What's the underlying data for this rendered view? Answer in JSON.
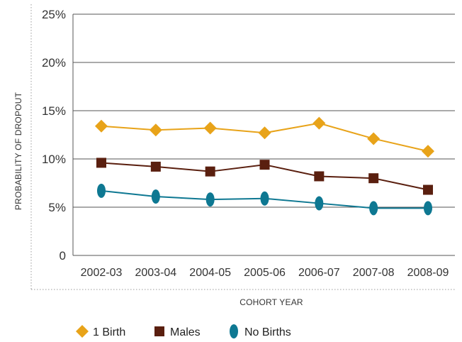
{
  "chart_data": {
    "type": "line",
    "categories": [
      "2002-03",
      "2003-04",
      "2004-05",
      "2005-06",
      "2006-07",
      "2007-08",
      "2008-09"
    ],
    "series": [
      {
        "name": "1 Birth",
        "values": [
          13.4,
          13.0,
          13.2,
          12.7,
          13.7,
          12.1,
          10.8
        ],
        "color": "#e8a319",
        "marker": "diamond"
      },
      {
        "name": "Males",
        "values": [
          9.6,
          9.2,
          8.7,
          9.4,
          8.2,
          8.0,
          6.8
        ],
        "color": "#5a1f0f",
        "marker": "square"
      },
      {
        "name": "No Births",
        "values": [
          6.7,
          6.1,
          5.8,
          5.9,
          5.4,
          4.9,
          4.9
        ],
        "color": "#0e7892",
        "marker": "ellipse"
      }
    ],
    "yticks": [
      "0",
      "5%",
      "10%",
      "15%",
      "20%",
      "25%"
    ],
    "ylim": [
      0,
      25
    ],
    "xlabel": "COHORT YEAR",
    "ylabel": "PROBABILITY OF DROPOUT",
    "grid": true,
    "legend_position": "bottom-left"
  }
}
